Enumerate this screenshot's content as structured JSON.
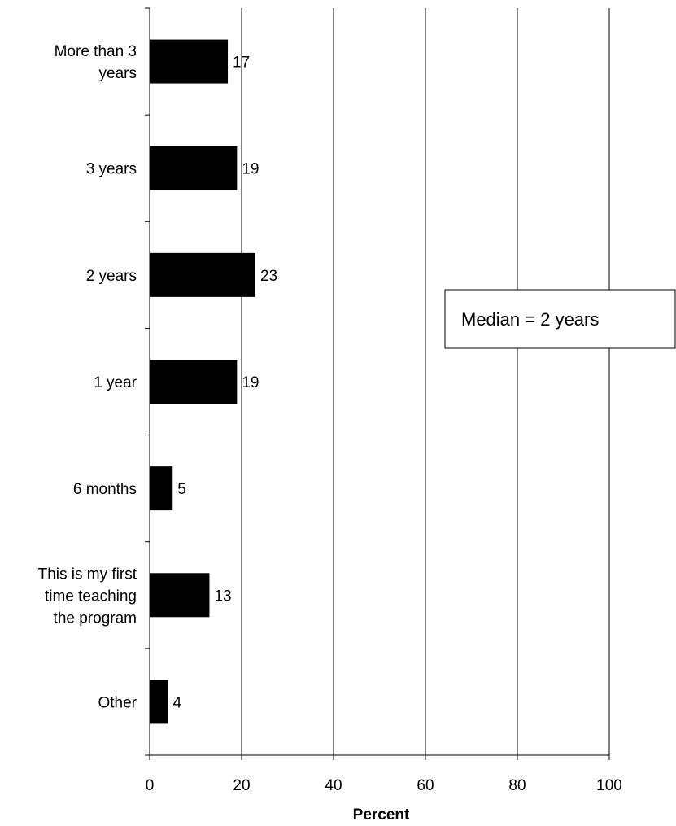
{
  "chart_data": {
    "type": "bar",
    "orientation": "horizontal",
    "categories": [
      [
        "More than 3",
        "years"
      ],
      [
        "3 years"
      ],
      [
        "2 years"
      ],
      [
        "1 year"
      ],
      [
        "6 months"
      ],
      [
        "This is my first",
        "time teaching",
        "the program"
      ],
      [
        "Other"
      ]
    ],
    "values": [
      17,
      19,
      23,
      19,
      5,
      13,
      4
    ],
    "data_labels": [
      "17",
      "19",
      "23",
      "19",
      "5",
      "13",
      "4"
    ],
    "title": "",
    "xlabel": "Percent",
    "ylabel": "",
    "xlim": [
      0,
      100
    ],
    "xticks": [
      0,
      20,
      40,
      60,
      80,
      100
    ],
    "grid": "vertical",
    "bar_color": "#000000",
    "annotation": "Median = 2 years"
  }
}
